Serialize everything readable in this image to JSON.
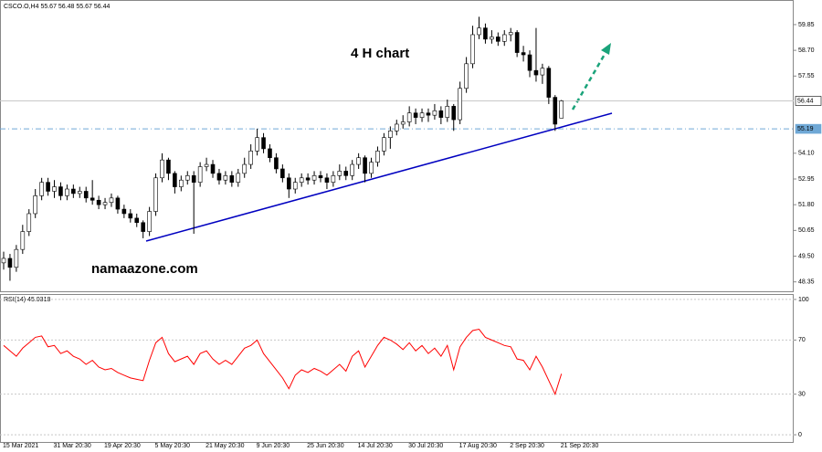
{
  "chart_data": [
    {
      "type": "candlestick",
      "title": "CSCO.O,H4 55.67 56.48 55.67 56.44",
      "annotations": [
        "4 H chart",
        "namaazone.com"
      ],
      "categories": [
        "15 Mar 2021",
        null,
        null,
        null,
        null,
        null,
        null,
        null,
        "31 Mar 20:30",
        null,
        null,
        null,
        null,
        null,
        null,
        null,
        "19 Apr 20:30",
        null,
        null,
        null,
        null,
        null,
        null,
        null,
        "5 May 20:30",
        null,
        null,
        null,
        null,
        null,
        null,
        null,
        "21 May 20:30",
        null,
        null,
        null,
        null,
        null,
        null,
        null,
        "9 Jun 20:30",
        null,
        null,
        null,
        null,
        null,
        null,
        null,
        "25 Jun 20:30",
        null,
        null,
        null,
        null,
        null,
        null,
        null,
        "14 Jul 20:30",
        null,
        null,
        null,
        null,
        null,
        null,
        null,
        "30 Jul 20:30",
        null,
        null,
        null,
        null,
        null,
        null,
        null,
        "17 Aug 20:30",
        null,
        null,
        null,
        null,
        null,
        null,
        null,
        "2 Sep 20:30",
        null,
        null,
        null,
        null,
        null,
        null,
        null,
        "21 Sep 20:30"
      ],
      "open": [
        49.2,
        49.4,
        49.0,
        49.8,
        50.6,
        51.4,
        52.2,
        52.8,
        52.4,
        52.6,
        52.2,
        52.5,
        52.3,
        52.4,
        52.1,
        52.0,
        51.8,
        51.9,
        52.1,
        51.6,
        51.4,
        51.2,
        51.0,
        50.6,
        51.5,
        53.0,
        53.8,
        53.2,
        52.6,
        52.9,
        53.1,
        52.8,
        53.5,
        53.6,
        53.2,
        52.9,
        53.1,
        52.8,
        53.2,
        53.6,
        54.2,
        54.8,
        54.3,
        53.9,
        53.4,
        53.0,
        52.5,
        52.8,
        53.0,
        52.9,
        53.1,
        53.0,
        52.8,
        53.1,
        53.3,
        53.1,
        53.6,
        53.9,
        53.2,
        53.7,
        54.2,
        54.8,
        55.1,
        55.4,
        55.5,
        55.9,
        55.7,
        55.9,
        55.8,
        56.0,
        55.7,
        56.2,
        55.6,
        57.0,
        58.1,
        59.4,
        59.7,
        59.2,
        59.3,
        59.1,
        59.4,
        59.5,
        58.6,
        58.5,
        57.8,
        57.6,
        57.9,
        56.6,
        55.67
      ],
      "high": [
        49.7,
        49.6,
        50.0,
        50.9,
        51.6,
        52.5,
        53.0,
        53.0,
        52.9,
        52.8,
        52.7,
        52.7,
        52.6,
        52.6,
        52.9,
        52.2,
        52.1,
        52.3,
        52.2,
        51.8,
        51.6,
        51.4,
        51.1,
        51.7,
        53.2,
        54.1,
        53.9,
        53.3,
        53.1,
        53.3,
        53.3,
        53.7,
        53.9,
        53.8,
        53.4,
        53.3,
        53.3,
        53.4,
        53.9,
        54.5,
        55.2,
        55.0,
        54.5,
        54.1,
        53.6,
        53.2,
        53.0,
        53.2,
        53.2,
        53.3,
        53.3,
        53.2,
        53.3,
        53.6,
        53.5,
        53.8,
        54.1,
        54.0,
        53.9,
        54.4,
        55.0,
        55.3,
        55.6,
        55.8,
        56.2,
        56.1,
        56.1,
        56.1,
        56.3,
        56.2,
        56.5,
        56.3,
        57.3,
        58.4,
        59.8,
        60.2,
        59.9,
        59.6,
        59.5,
        59.6,
        59.7,
        59.6,
        58.9,
        58.7,
        59.7,
        58.1,
        58.0,
        56.7,
        56.48
      ],
      "low": [
        48.9,
        48.4,
        48.8,
        49.6,
        50.4,
        51.2,
        52.0,
        52.2,
        52.1,
        52.0,
        52.0,
        52.1,
        52.1,
        51.9,
        51.8,
        51.6,
        51.6,
        51.7,
        51.4,
        51.2,
        51.0,
        50.8,
        50.3,
        50.4,
        51.3,
        52.8,
        52.9,
        52.3,
        52.4,
        52.7,
        50.5,
        52.6,
        53.3,
        53.0,
        52.7,
        52.7,
        52.6,
        52.6,
        53.0,
        53.4,
        54.0,
        54.1,
        53.7,
        53.2,
        52.8,
        52.1,
        52.3,
        52.6,
        52.7,
        52.7,
        52.8,
        52.5,
        52.6,
        52.9,
        52.9,
        52.9,
        53.4,
        52.8,
        53.0,
        53.5,
        54.0,
        54.3,
        54.9,
        55.2,
        55.3,
        55.4,
        55.5,
        55.5,
        55.6,
        55.4,
        55.5,
        55.1,
        55.4,
        56.8,
        57.9,
        59.2,
        59.0,
        59.0,
        58.9,
        58.9,
        59.1,
        58.4,
        58.2,
        57.5,
        57.3,
        57.2,
        56.3,
        55.1,
        55.67
      ],
      "close": [
        49.4,
        49.0,
        49.8,
        50.6,
        51.4,
        52.2,
        52.8,
        52.4,
        52.6,
        52.2,
        52.5,
        52.3,
        52.4,
        52.1,
        52.0,
        51.8,
        51.9,
        52.1,
        51.6,
        51.4,
        51.2,
        51.0,
        50.6,
        51.5,
        53.0,
        53.8,
        53.2,
        52.6,
        52.9,
        53.1,
        52.8,
        53.5,
        53.6,
        53.2,
        52.9,
        53.1,
        52.8,
        53.2,
        53.6,
        54.2,
        54.8,
        54.3,
        53.9,
        53.4,
        53.0,
        52.5,
        52.8,
        53.0,
        52.9,
        53.1,
        53.0,
        52.8,
        53.1,
        53.3,
        53.1,
        53.6,
        53.9,
        53.2,
        53.7,
        54.2,
        54.8,
        55.1,
        55.4,
        55.5,
        55.9,
        55.7,
        55.9,
        55.8,
        56.0,
        55.7,
        56.2,
        55.6,
        57.0,
        58.1,
        59.4,
        59.7,
        59.2,
        59.3,
        59.1,
        59.4,
        59.5,
        58.6,
        58.5,
        57.8,
        57.6,
        57.9,
        56.6,
        55.4,
        56.44
      ],
      "up_color": "#ffffff",
      "down_color": "#000000",
      "ylim": [
        47.97,
        60.95
      ],
      "yticks": [
        48.35,
        {
          "value": 49.5,
          "label": "49.50"
        },
        50.65,
        {
          "value": 51.8,
          "label": "51.80"
        },
        52.95,
        {
          "value": 54.1,
          "label": "54.10"
        },
        57.55,
        {
          "value": 58.7,
          "label": "58.70"
        },
        59.85
      ],
      "price_lines": [
        {
          "value": 56.44,
          "color": "#c8c8c8",
          "dashed": false
        },
        {
          "value": 55.19,
          "color": "#6fa8d6",
          "dashed": true
        }
      ]
    },
    {
      "type": "line",
      "title": "RSI(14) 45.0318",
      "color": "#ff0000",
      "values": [
        66,
        62,
        58,
        64,
        68,
        72,
        73,
        65,
        66,
        60,
        62,
        58,
        56,
        52,
        55,
        50,
        48,
        49,
        46,
        44,
        42,
        41,
        40,
        55,
        68,
        72,
        60,
        54,
        56,
        58,
        52,
        60,
        62,
        56,
        52,
        55,
        52,
        58,
        64,
        66,
        70,
        60,
        54,
        48,
        42,
        34,
        44,
        48,
        46,
        49,
        47,
        44,
        48,
        52,
        47,
        58,
        62,
        50,
        58,
        66,
        72,
        70,
        67,
        63,
        68,
        62,
        66,
        60,
        64,
        58,
        66,
        48,
        65,
        72,
        77,
        78,
        72,
        70,
        68,
        66,
        65,
        56,
        55,
        48,
        58,
        50,
        40,
        30,
        45.0318
      ],
      "ylim": [
        -6,
        104
      ],
      "yticks": [
        0,
        30,
        70,
        100
      ]
    }
  ]
}
